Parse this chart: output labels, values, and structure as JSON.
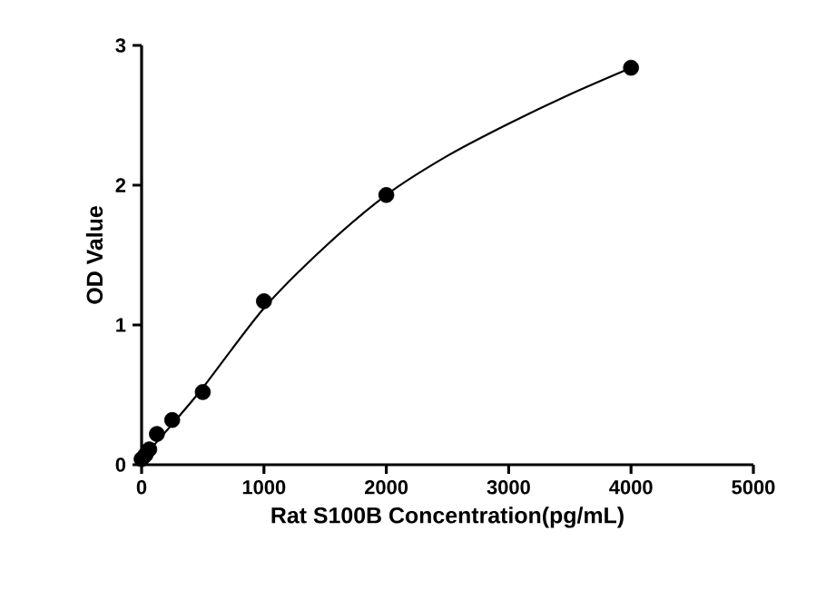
{
  "chart_data": {
    "type": "scatter",
    "xlabel": "Rat S100B Concentration(pg/mL)",
    "ylabel": "OD Value",
    "xlim": [
      0,
      5000
    ],
    "ylim": [
      0,
      3
    ],
    "xticks": [
      0,
      1000,
      2000,
      3000,
      4000,
      5000
    ],
    "yticks": [
      0,
      1,
      2,
      3
    ],
    "grid": false,
    "marker": "circle",
    "series": [
      {
        "color": "#000000",
        "x": [
          0,
          31.25,
          62.5,
          125,
          250,
          500,
          1000,
          2000,
          4000
        ],
        "values": [
          0.04,
          0.07,
          0.11,
          0.22,
          0.32,
          0.52,
          1.17,
          1.93,
          2.84
        ]
      },
      {
        "type": "line",
        "color": "#000000",
        "marker": "none",
        "x": [
          0,
          250,
          500,
          1000,
          1500,
          2000,
          2500,
          3000,
          3500,
          4000
        ],
        "values": [
          0.04,
          0.29,
          0.55,
          1.12,
          1.56,
          1.93,
          2.21,
          2.44,
          2.65,
          2.84
        ]
      }
    ]
  }
}
